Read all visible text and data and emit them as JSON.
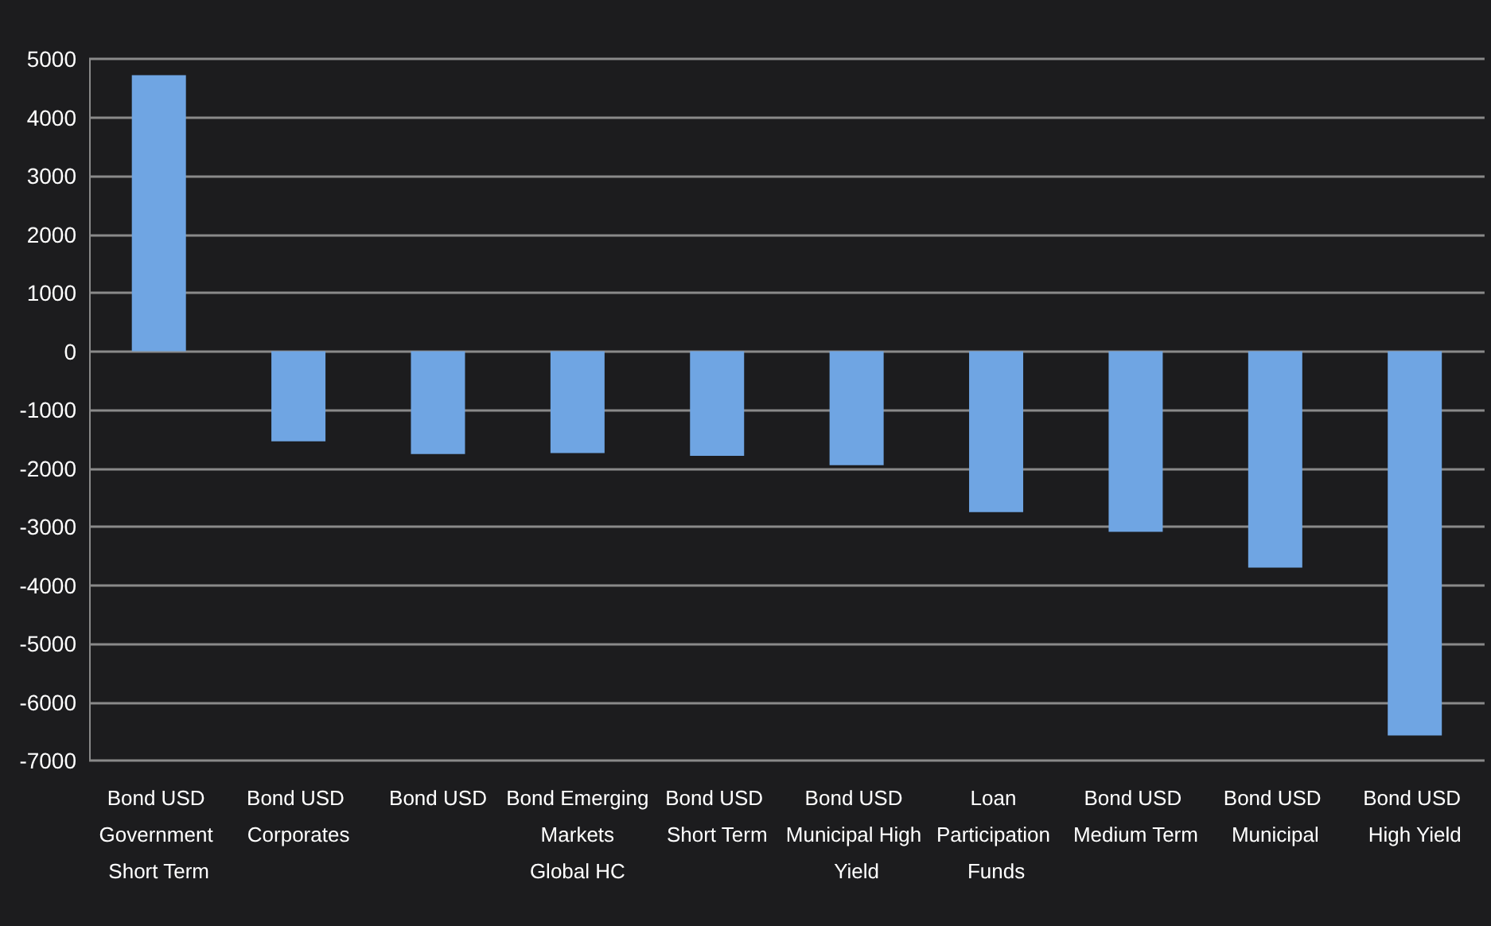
{
  "chart_data": {
    "type": "bar",
    "categories": [
      "Bond USD Government Short Term",
      "Bond USD Corporates",
      "Bond USD",
      "Bond Emerging Markets Global HC",
      "Bond USD Short Term",
      "Bond USD Municipal High Yield",
      "Loan Participation Funds",
      "Bond USD Medium Term",
      "Bond USD Municipal",
      "Bond USD High Yield"
    ],
    "values": [
      4720,
      -1540,
      -1760,
      -1740,
      -1790,
      -1950,
      -2750,
      -3090,
      -3700,
      -6570
    ],
    "color": "#6fa5e3",
    "ylim": [
      -7000,
      5000
    ],
    "yticks": [
      -7000,
      -6000,
      -5000,
      -4000,
      -3000,
      -2000,
      -1000,
      0,
      1000,
      2000,
      3000,
      4000,
      5000
    ],
    "grid": "y"
  }
}
